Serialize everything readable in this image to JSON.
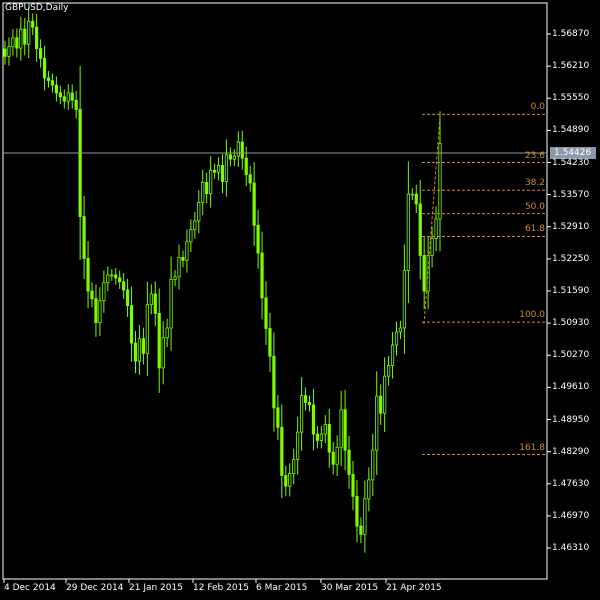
{
  "chart": {
    "symbol_label": "GBPUSD,Daily",
    "current_price": "1.54426",
    "price_axis_labels": [
      "1.56870",
      "1.56210",
      "1.55550",
      "1.54890",
      "1.54230",
      "1.53570",
      "1.52910",
      "1.52250",
      "1.51590",
      "1.50930",
      "1.50270",
      "1.49610",
      "1.48950",
      "1.48290",
      "1.47630",
      "1.46970",
      "1.46310"
    ],
    "date_axis_labels": [
      "4 Dec 2014",
      "29 Dec 2014",
      "21 Jan 2015",
      "12 Feb 2015",
      "6 Mar 2015",
      "30 Mar 2015",
      "21 Apr 2015"
    ]
  },
  "fibonacci": {
    "levels": [
      {
        "label": "0.0",
        "price": 1.5522
      },
      {
        "label": "23.6",
        "price": 1.5423
      },
      {
        "label": "38.2",
        "price": 1.5366
      },
      {
        "label": "50.0",
        "price": 1.5318
      },
      {
        "label": "61.8",
        "price": 1.5271
      },
      {
        "label": "100.0",
        "price": 1.5095
      },
      {
        "label": "161.8",
        "price": 1.4823
      }
    ]
  },
  "colors": {
    "background": "#000000",
    "candle": "#7CFC00",
    "fib": "#d08a2a",
    "axis": "#ffffff",
    "price_line": "#8b9aa8"
  },
  "chart_data": {
    "type": "candlestick",
    "symbol": "GBPUSD",
    "timeframe": "Daily",
    "ylim": [
      1.458,
      1.5735
    ],
    "last_price": 1.54426,
    "closes": [
      1.5641,
      1.5661,
      1.5679,
      1.5658,
      1.5697,
      1.5666,
      1.5713,
      1.5701,
      1.5657,
      1.5637,
      1.5597,
      1.5591,
      1.5582,
      1.5566,
      1.5558,
      1.5549,
      1.5566,
      1.5551,
      1.5532,
      1.5312,
      1.5226,
      1.5159,
      1.5143,
      1.5094,
      1.5139,
      1.5176,
      1.5192,
      1.5192,
      1.5186,
      1.5178,
      1.5161,
      1.5129,
      1.5052,
      1.5015,
      1.5061,
      1.5031,
      1.5131,
      1.5153,
      1.5113,
      1.5001,
      1.5063,
      1.5083,
      1.5183,
      1.5188,
      1.5228,
      1.5222,
      1.526,
      1.5285,
      1.5303,
      1.5341,
      1.5382,
      1.5359,
      1.5407,
      1.5403,
      1.5417,
      1.5384,
      1.5439,
      1.543,
      1.5436,
      1.5465,
      1.5432,
      1.5398,
      1.5381,
      1.5294,
      1.5237,
      1.5145,
      1.5082,
      1.5025,
      1.4919,
      1.4879,
      1.478,
      1.4758,
      1.4784,
      1.4813,
      1.4869,
      1.4944,
      1.493,
      1.4925,
      1.4865,
      1.4852,
      1.4865,
      1.4885,
      1.4828,
      1.4803,
      1.4838,
      1.4915,
      1.4832,
      1.4782,
      1.4737,
      1.4676,
      1.4659,
      1.4732,
      1.4771,
      1.4832,
      1.4943,
      1.4908,
      1.4984,
      1.5006,
      1.5048,
      1.5075,
      1.5083,
      1.5201,
      1.5358,
      1.5358,
      1.5338,
      1.5232,
      1.5159,
      1.5232,
      1.5267,
      1.5307,
      1.5462
    ]
  }
}
